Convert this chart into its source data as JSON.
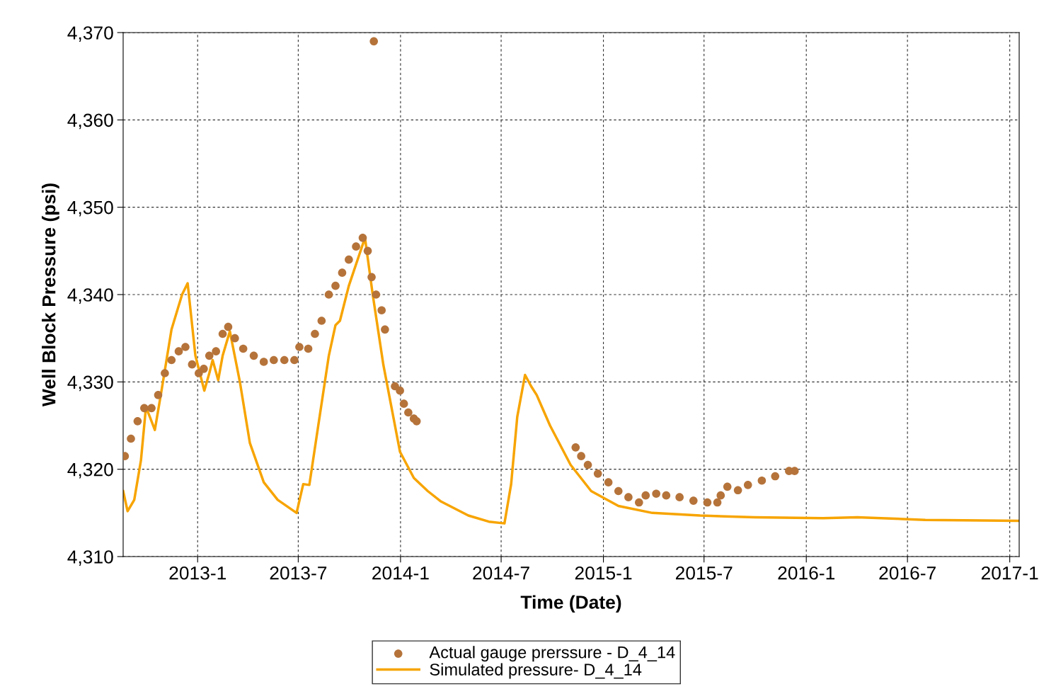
{
  "chart_data": {
    "type": "line",
    "xlabel": "Time (Date)",
    "ylabel": "Well Block Pressure (psi)",
    "xlim": [
      "2012-08-20",
      "2017-01-18"
    ],
    "ylim": [
      4310,
      4370
    ],
    "xticks": [
      {
        "value": "2013-01-01",
        "label": "2013-1"
      },
      {
        "value": "2013-07-01",
        "label": "2013-7"
      },
      {
        "value": "2014-01-01",
        "label": "2014-1"
      },
      {
        "value": "2014-07-01",
        "label": "2014-7"
      },
      {
        "value": "2015-01-01",
        "label": "2015-1"
      },
      {
        "value": "2015-07-01",
        "label": "2015-7"
      },
      {
        "value": "2016-01-01",
        "label": "2016-1"
      },
      {
        "value": "2016-07-01",
        "label": "2016-7"
      },
      {
        "value": "2017-01-01",
        "label": "2017-1"
      }
    ],
    "yticks": [
      {
        "value": 4310,
        "label": "4,310"
      },
      {
        "value": 4320,
        "label": "4,320"
      },
      {
        "value": 4330,
        "label": "4,330"
      },
      {
        "value": 4340,
        "label": "4,340"
      },
      {
        "value": 4350,
        "label": "4,350"
      },
      {
        "value": 4360,
        "label": "4,360"
      },
      {
        "value": 4370,
        "label": "4,370"
      }
    ],
    "grid": true,
    "legend": "bottom",
    "series": [
      {
        "name": "Actual gauge prerssure - D_4_14",
        "type": "scatter",
        "marker": "circle",
        "color": "#b5733a",
        "x": [
          "2012-08-23",
          "2012-09-03",
          "2012-09-15",
          "2012-09-27",
          "2012-10-10",
          "2012-10-22",
          "2012-11-03",
          "2012-11-15",
          "2012-11-28",
          "2012-12-10",
          "2012-12-22",
          "2013-01-03",
          "2013-01-12",
          "2013-01-22",
          "2013-02-03",
          "2013-02-15",
          "2013-02-25",
          "2013-03-09",
          "2013-03-24",
          "2013-04-12",
          "2013-04-30",
          "2013-05-18",
          "2013-06-06",
          "2013-06-24",
          "2013-07-03",
          "2013-07-19",
          "2013-07-31",
          "2013-08-12",
          "2013-08-25",
          "2013-09-06",
          "2013-09-18",
          "2013-09-30",
          "2013-10-13",
          "2013-10-25",
          "2013-11-03",
          "2013-11-10",
          "2013-11-14",
          "2013-11-18",
          "2013-11-28",
          "2013-12-04",
          "2013-12-22",
          "2013-12-31",
          "2014-01-07",
          "2014-01-15",
          "2014-01-25",
          "2014-01-30",
          "2014-11-12",
          "2014-11-22",
          "2014-12-04",
          "2014-12-22",
          "2015-01-10",
          "2015-01-28",
          "2015-02-15",
          "2015-03-06",
          "2015-03-18",
          "2015-04-06",
          "2015-04-24",
          "2015-05-18",
          "2015-06-12",
          "2015-07-07",
          "2015-07-25",
          "2015-07-31",
          "2015-08-12",
          "2015-08-31",
          "2015-09-18",
          "2015-10-13",
          "2015-11-06",
          "2015-12-01",
          "2015-12-11"
        ],
        "values": [
          4321.5,
          4323.5,
          4325.5,
          4327,
          4327,
          4328.5,
          4331,
          4332.5,
          4333.5,
          4334,
          4332,
          4331,
          4331.5,
          4333,
          4333.5,
          4335.5,
          4336.3,
          4335,
          4333.8,
          4333,
          4332.3,
          4332.5,
          4332.5,
          4332.5,
          4334,
          4333.8,
          4335.5,
          4337,
          4340,
          4341,
          4342.5,
          4344,
          4345.5,
          4346.5,
          4345,
          4342,
          4369,
          4340,
          4338.2,
          4336,
          4329.5,
          4329,
          4327.5,
          4326.5,
          4325.8,
          4325.5,
          4322.5,
          4321.5,
          4320.5,
          4319.5,
          4318.5,
          4317.5,
          4316.8,
          4316.2,
          4317,
          4317.2,
          4317,
          4316.8,
          4316.4,
          4316.2,
          4316.2,
          4317,
          4318,
          4317.6,
          4318.2,
          4318.7,
          4319.2,
          4319.8,
          4319.8
        ]
      },
      {
        "name": "Simulated pressure- D_4_14",
        "marker": "none",
        "line_style": "solid",
        "color": "#f7a400",
        "x": [
          "2012-08-20",
          "2012-08-28",
          "2012-09-09",
          "2012-09-21",
          "2012-09-30",
          "2012-10-07",
          "2012-10-16",
          "2012-10-28",
          "2012-11-15",
          "2012-12-04",
          "2012-12-14",
          "2012-12-28",
          "2013-01-13",
          "2013-01-22",
          "2013-01-28",
          "2013-02-07",
          "2013-02-15",
          "2013-02-28",
          "2013-03-18",
          "2013-04-05",
          "2013-04-30",
          "2013-05-25",
          "2013-06-28",
          "2013-07-10",
          "2013-07-21",
          "2013-08-06",
          "2013-08-25",
          "2013-09-06",
          "2013-09-14",
          "2013-09-30",
          "2013-10-29",
          "2013-11-12",
          "2013-12-01",
          "2013-12-19",
          "2013-12-31",
          "2014-01-25",
          "2014-02-19",
          "2014-03-15",
          "2014-05-03",
          "2014-06-09",
          "2014-07-07",
          "2014-07-19",
          "2014-07-30",
          "2014-08-13",
          "2014-08-24",
          "2014-09-03",
          "2014-09-27",
          "2014-11-03",
          "2014-12-10",
          "2015-01-28",
          "2015-03-30",
          "2015-06-24",
          "2015-09-30",
          "2016-01-31",
          "2016-04-02",
          "2016-08-02",
          "2017-01-18"
        ],
        "values": [
          4317.5,
          4315.2,
          4316.5,
          4321,
          4327.1,
          4326,
          4324.5,
          4329,
          4336,
          4340,
          4341.3,
          4333,
          4329,
          4331,
          4332.5,
          4330.2,
          4333,
          4335.8,
          4330,
          4323,
          4318.5,
          4316.5,
          4315,
          4318.3,
          4318.2,
          4325,
          4333,
          4336.5,
          4337,
          4341,
          4346.5,
          4340,
          4332,
          4326,
          4322,
          4319,
          4317.5,
          4316.3,
          4314.7,
          4314,
          4313.8,
          4318.3,
          4326,
          4330.8,
          4329.5,
          4328.5,
          4325,
          4320.5,
          4317.5,
          4315.8,
          4315,
          4314.7,
          4314.5,
          4314.4,
          4314.5,
          4314.2,
          4314.1
        ]
      }
    ]
  }
}
